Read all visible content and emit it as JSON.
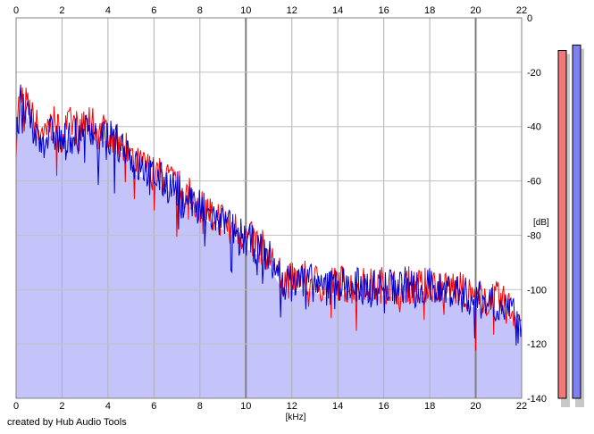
{
  "chart_data": {
    "type": "line",
    "title": "",
    "xlabel": "[kHz]",
    "ylabel": "[dB]",
    "xlim": [
      0,
      22
    ],
    "ylim": [
      -140,
      0
    ],
    "x_ticks": [
      "0",
      "2",
      "4",
      "6",
      "8",
      "10",
      "12",
      "14",
      "16",
      "18",
      "20",
      "22"
    ],
    "y_ticks": [
      "0",
      "-20",
      "-40",
      "-60",
      "-80",
      "-100",
      "-120",
      "-140"
    ],
    "grid": true,
    "fill_color": "#c4c4fa",
    "series": [
      {
        "color": "#ff0000",
        "x": [
          0,
          0.2,
          0.4,
          0.8,
          1.2,
          1.6,
          2.0,
          2.4,
          2.8,
          3.2,
          3.6,
          4.0,
          4.4,
          4.8,
          5.2,
          5.6,
          6.0,
          6.5,
          7.0,
          7.5,
          8.0,
          8.5,
          9.0,
          9.5,
          10.0,
          10.5,
          11.0,
          11.5,
          12.0,
          12.5,
          13.0,
          13.5,
          14.0,
          14.5,
          15.0,
          15.5,
          16.0,
          16.5,
          17.0,
          17.5,
          18.0,
          18.5,
          19.0,
          19.5,
          20.0,
          20.5,
          21.0,
          21.5,
          22.0
        ],
        "values": [
          -42,
          -28,
          -32,
          -40,
          -42,
          -40,
          -44,
          -40,
          -42,
          -39,
          -43,
          -42,
          -46,
          -47,
          -55,
          -56,
          -58,
          -60,
          -63,
          -66,
          -70,
          -73,
          -75,
          -78,
          -82,
          -84,
          -88,
          -96,
          -98,
          -97,
          -98,
          -100,
          -98,
          -100,
          -99,
          -100,
          -99,
          -100,
          -99,
          -100,
          -99,
          -100,
          -100,
          -102,
          -104,
          -104,
          -105,
          -108,
          -112
        ]
      },
      {
        "color": "#0000cc",
        "x": [
          0,
          0.2,
          0.4,
          0.8,
          1.2,
          1.6,
          2.0,
          2.4,
          2.8,
          3.2,
          3.6,
          4.0,
          4.4,
          4.8,
          5.2,
          5.6,
          6.0,
          6.5,
          7.0,
          7.5,
          8.0,
          8.5,
          9.0,
          9.5,
          10.0,
          10.5,
          11.0,
          11.5,
          12.0,
          12.5,
          13.0,
          13.5,
          14.0,
          14.5,
          15.0,
          15.5,
          16.0,
          16.5,
          17.0,
          17.5,
          18.0,
          18.5,
          19.0,
          19.5,
          20.0,
          20.5,
          21.0,
          21.5,
          22.0
        ],
        "values": [
          -45,
          -30,
          -34,
          -42,
          -44,
          -41,
          -45,
          -42,
          -43,
          -38,
          -44,
          -43,
          -45,
          -46,
          -54,
          -55,
          -57,
          -60,
          -62,
          -65,
          -69,
          -72,
          -74,
          -77,
          -81,
          -83,
          -87,
          -95,
          -97,
          -95,
          -97,
          -99,
          -96,
          -98,
          -97,
          -99,
          -97,
          -98,
          -97,
          -99,
          -98,
          -99,
          -99,
          -101,
          -103,
          -103,
          -104,
          -107,
          -111
        ]
      }
    ],
    "meters": [
      {
        "color": "#f07878",
        "value": -12
      },
      {
        "color": "#8080ee",
        "value": -10
      }
    ]
  },
  "credit": "created by Hub Audio Tools"
}
